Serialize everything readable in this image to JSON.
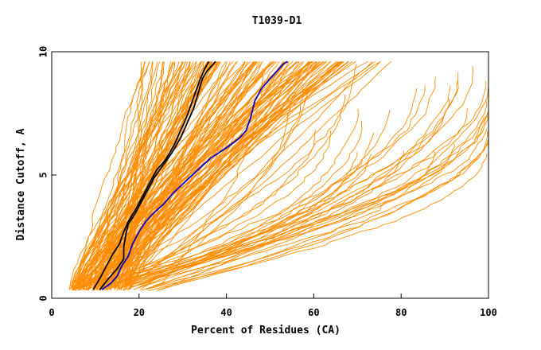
{
  "chart_data": {
    "type": "line",
    "title": "T1039-D1",
    "xlabel": "Percent of Residues (CA)",
    "ylabel": "Distance Cutoff, A",
    "xlim": [
      0,
      100
    ],
    "ylim": [
      0,
      10
    ],
    "x_ticks": [
      "0",
      "20",
      "40",
      "60",
      "80",
      "100"
    ],
    "y_ticks": [
      "0",
      "5",
      "10"
    ],
    "x_tick_values": [
      0,
      20,
      40,
      60,
      80,
      100
    ],
    "y_tick_values": [
      0,
      5,
      10
    ],
    "grid": false,
    "colors": {
      "models": "#ff8c00",
      "highlight_black": "#000000",
      "highlight_blue": "#0000cd"
    },
    "series": [
      {
        "color": "#000000",
        "points": [
          [
            9.5,
            0.35
          ],
          [
            11,
            0.8
          ],
          [
            12.5,
            1.3
          ],
          [
            14,
            1.8
          ],
          [
            15.5,
            2.2
          ],
          [
            16.5,
            2.7
          ],
          [
            17.5,
            3.1
          ],
          [
            18.5,
            3.4
          ],
          [
            19.5,
            3.7
          ],
          [
            21,
            4.2
          ],
          [
            22.5,
            4.7
          ],
          [
            24,
            5.2
          ],
          [
            26,
            5.6
          ],
          [
            28,
            6.2
          ],
          [
            29.5,
            6.8
          ],
          [
            31,
            7.4
          ],
          [
            32,
            7.9
          ],
          [
            33,
            8.4
          ],
          [
            34,
            8.9
          ],
          [
            35,
            9.3
          ],
          [
            36,
            9.6
          ]
        ]
      },
      {
        "color": "#000000",
        "points": [
          [
            11,
            0.35
          ],
          [
            13,
            0.8
          ],
          [
            15,
            1.2
          ],
          [
            16.5,
            1.6
          ],
          [
            16.5,
            2.1
          ],
          [
            17,
            2.6
          ],
          [
            17.5,
            3.0
          ],
          [
            19,
            3.4
          ],
          [
            20.5,
            3.9
          ],
          [
            22,
            4.4
          ],
          [
            23.5,
            4.9
          ],
          [
            25.5,
            5.4
          ],
          [
            27.5,
            5.9
          ],
          [
            29.5,
            6.5
          ],
          [
            31,
            7.1
          ],
          [
            32.5,
            7.7
          ],
          [
            33.5,
            8.3
          ],
          [
            34.5,
            8.9
          ],
          [
            35.5,
            9.2
          ],
          [
            37.5,
            9.6
          ]
        ]
      },
      {
        "color": "#0000cd",
        "points": [
          [
            11.5,
            0.35
          ],
          [
            13.5,
            0.6
          ],
          [
            15,
            0.9
          ],
          [
            16,
            1.3
          ],
          [
            17.5,
            1.7
          ],
          [
            18.5,
            2.2
          ],
          [
            20,
            2.7
          ],
          [
            21.5,
            3.1
          ],
          [
            23,
            3.4
          ],
          [
            25.5,
            3.8
          ],
          [
            28,
            4.3
          ],
          [
            31,
            4.8
          ],
          [
            34,
            5.3
          ],
          [
            36.5,
            5.7
          ],
          [
            40,
            6.1
          ],
          [
            43,
            6.5
          ],
          [
            44.5,
            6.8
          ],
          [
            45.5,
            7.3
          ],
          [
            46.5,
            8.0
          ],
          [
            48,
            8.5
          ],
          [
            50,
            8.9
          ],
          [
            51.5,
            9.2
          ],
          [
            53,
            9.5
          ],
          [
            54,
            9.6
          ]
        ]
      }
    ]
  }
}
